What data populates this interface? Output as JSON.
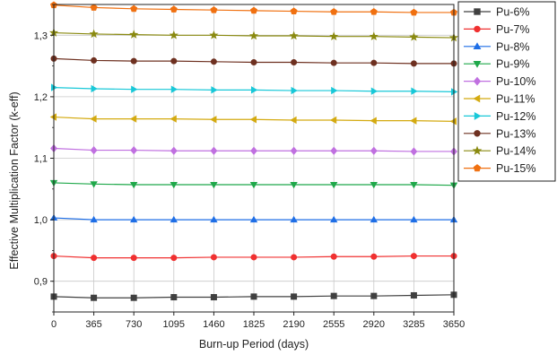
{
  "chart_data": {
    "type": "line",
    "title": "",
    "xlabel": "Burn-up Period (days)",
    "ylabel": "Effective Multiplication Factor (k-eff)",
    "x": [
      0,
      365,
      730,
      1095,
      1460,
      1825,
      2190,
      2555,
      2920,
      3285,
      3650
    ],
    "xticks": [
      "0",
      "365",
      "730",
      "1095",
      "1460",
      "1825",
      "2190",
      "2555",
      "2920",
      "3285",
      "3650"
    ],
    "yticks": [
      {
        "value": 0.9,
        "label": "0,9"
      },
      {
        "value": 1.0,
        "label": "1,0"
      },
      {
        "value": 1.1,
        "label": "1,1"
      },
      {
        "value": 1.2,
        "label": "1,2"
      },
      {
        "value": 1.3,
        "label": "1,3"
      }
    ],
    "xlim": [
      0,
      3650
    ],
    "ylim": [
      0.85,
      1.35
    ],
    "grid": true,
    "legend_position": "outside-right",
    "series": [
      {
        "name": "Pu-6%",
        "color": "#404040",
        "marker": "square",
        "values": [
          0.875,
          0.873,
          0.873,
          0.874,
          0.874,
          0.875,
          0.875,
          0.876,
          0.876,
          0.877,
          0.878
        ]
      },
      {
        "name": "Pu-7%",
        "color": "#f03030",
        "marker": "circle",
        "values": [
          0.941,
          0.938,
          0.938,
          0.938,
          0.939,
          0.939,
          0.939,
          0.94,
          0.94,
          0.941,
          0.941
        ]
      },
      {
        "name": "Pu-8%",
        "color": "#1e6ee6",
        "marker": "triangle-up",
        "values": [
          1.003,
          1.0,
          1.0,
          1.0,
          1.0,
          1.0,
          1.0,
          1.0,
          1.0,
          1.0,
          1.0
        ]
      },
      {
        "name": "Pu-9%",
        "color": "#1fa84a",
        "marker": "triangle-down",
        "values": [
          1.06,
          1.058,
          1.057,
          1.057,
          1.057,
          1.057,
          1.057,
          1.057,
          1.057,
          1.057,
          1.056
        ]
      },
      {
        "name": "Pu-10%",
        "color": "#c070e0",
        "marker": "diamond",
        "values": [
          1.116,
          1.113,
          1.113,
          1.112,
          1.112,
          1.112,
          1.112,
          1.112,
          1.112,
          1.111,
          1.111
        ]
      },
      {
        "name": "Pu-11%",
        "color": "#d4aa10",
        "marker": "triangle-left",
        "values": [
          1.167,
          1.164,
          1.164,
          1.164,
          1.163,
          1.163,
          1.162,
          1.162,
          1.161,
          1.161,
          1.16
        ]
      },
      {
        "name": "Pu-12%",
        "color": "#18c8d8",
        "marker": "triangle-right",
        "values": [
          1.215,
          1.213,
          1.212,
          1.212,
          1.211,
          1.211,
          1.21,
          1.21,
          1.209,
          1.209,
          1.208
        ]
      },
      {
        "name": "Pu-13%",
        "color": "#6e3020",
        "marker": "circle",
        "values": [
          1.262,
          1.259,
          1.258,
          1.258,
          1.257,
          1.256,
          1.256,
          1.255,
          1.255,
          1.254,
          1.254
        ]
      },
      {
        "name": "Pu-14%",
        "color": "#8a8a10",
        "marker": "star",
        "values": [
          1.304,
          1.302,
          1.301,
          1.3,
          1.3,
          1.299,
          1.299,
          1.298,
          1.298,
          1.297,
          1.296
        ]
      },
      {
        "name": "Pu-15%",
        "color": "#f07010",
        "marker": "pentagon",
        "values": [
          1.349,
          1.345,
          1.343,
          1.342,
          1.341,
          1.34,
          1.339,
          1.338,
          1.338,
          1.337,
          1.337
        ]
      }
    ]
  }
}
